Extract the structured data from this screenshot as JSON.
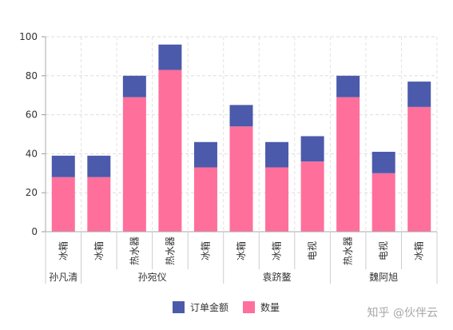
{
  "chart_data": {
    "type": "bar",
    "stacked": true,
    "groups": [
      {
        "name": "孙凡清",
        "categories": [
          "冰箱"
        ]
      },
      {
        "name": "孙宛仪",
        "categories": [
          "冰箱",
          "热水器",
          "热水器",
          "冰箱"
        ]
      },
      {
        "name": "袁跻鳌",
        "categories": [
          "冰箱",
          "冰箱",
          "电视"
        ]
      },
      {
        "name": "魏阿旭",
        "categories": [
          "热水器",
          "电视",
          "冰箱"
        ]
      }
    ],
    "categories": [
      "冰箱",
      "冰箱",
      "热水器",
      "热水器",
      "冰箱",
      "冰箱",
      "冰箱",
      "电视",
      "热水器",
      "电视",
      "冰箱"
    ],
    "series": [
      {
        "name": "数量",
        "color": "#ff6f9c",
        "values": [
          28,
          28,
          69,
          83,
          33,
          54,
          33,
          36,
          69,
          30,
          64
        ]
      },
      {
        "name": "订单金额",
        "color": "#4b5aab",
        "values": [
          11,
          11,
          11,
          13,
          13,
          11,
          13,
          13,
          11,
          11,
          13
        ]
      }
    ],
    "legend": [
      "订单金额",
      "数量"
    ],
    "legend_position": "bottom-center",
    "ylim": [
      0,
      100
    ],
    "yticks": [
      0,
      20,
      40,
      60,
      80,
      100
    ],
    "grid": true
  },
  "watermark": "知乎 @伙伴云"
}
